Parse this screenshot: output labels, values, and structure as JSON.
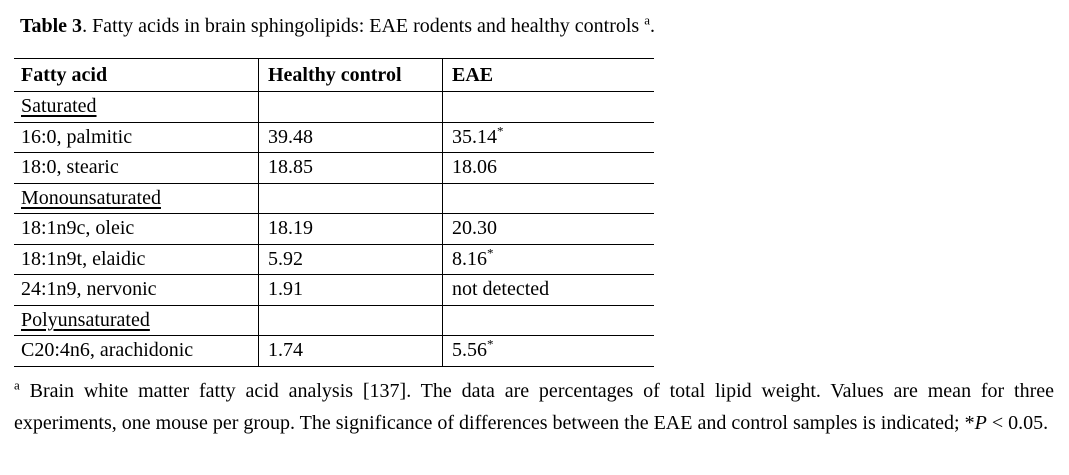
{
  "caption": {
    "bold": "Table 3",
    "text": ". Fatty acids in brain sphingolipids: EAE rodents and healthy controls ",
    "sup": "a",
    "tail": "."
  },
  "table": {
    "headers": [
      "Fatty acid",
      "Healthy control",
      "EAE"
    ],
    "rows": [
      {
        "name": "Saturated",
        "category": true,
        "control": "",
        "eae": ""
      },
      {
        "name": "16:0, palmitic",
        "control": "39.48",
        "eae": "35.14",
        "eae_star": true
      },
      {
        "name": "18:0, stearic",
        "control": "18.85",
        "eae": "18.06"
      },
      {
        "name": "Monounsaturated",
        "category": true,
        "control": "",
        "eae": ""
      },
      {
        "name": "18:1n9c, oleic",
        "control": "18.19",
        "eae": "20.30"
      },
      {
        "name": "18:1n9t, elaidic",
        "control": "5.92",
        "eae": "8.16",
        "eae_star": true
      },
      {
        "name": "24:1n9, nervonic",
        "control": "1.91",
        "eae": "not detected"
      },
      {
        "name": "Polyunsaturated",
        "category": true,
        "control": "",
        "eae": ""
      },
      {
        "name": "C20:4n6, arachidonic",
        "control": "1.74",
        "eae": "5.56",
        "eae_star": true
      }
    ],
    "significance_marker": "*"
  },
  "footnote": {
    "sup": "a",
    "body": " Brain white matter fatty acid analysis [137]. The data are percentages of total lipid weight. Values are mean for three experiments, one mouse per group. The significance of differences between the EAE and control samples is indicated; *",
    "italic": "P",
    "tail": " < 0.05."
  },
  "colors": {
    "text": "#000000",
    "background": "#ffffff",
    "border": "#000000"
  }
}
